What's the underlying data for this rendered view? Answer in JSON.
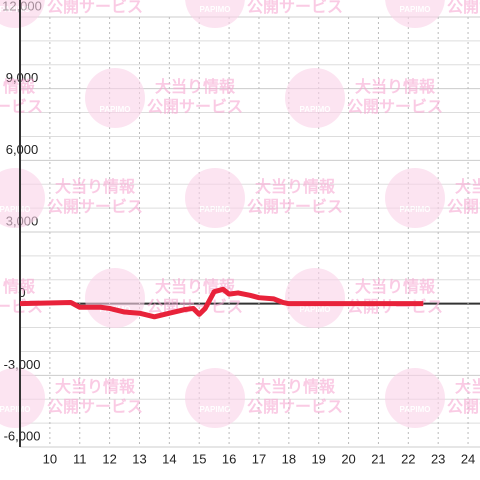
{
  "chart_data": {
    "type": "line",
    "x": [
      9,
      10.7,
      11,
      11.7,
      12,
      12.5,
      13,
      13.5,
      14,
      14.5,
      14.8,
      15,
      15.2,
      15.5,
      15.8,
      16,
      16.3,
      16.7,
      17,
      17.5,
      17.8,
      18,
      22.5
    ],
    "series": [
      {
        "color": "#e8223a",
        "values": [
          0,
          50,
          -150,
          -150,
          -200,
          -350,
          -400,
          -550,
          -400,
          -250,
          -200,
          -450,
          -200,
          500,
          600,
          400,
          450,
          350,
          250,
          200,
          50,
          0,
          0
        ]
      }
    ],
    "xlim": [
      9,
      24.4
    ],
    "xticks": [
      10,
      11,
      12,
      13,
      14,
      15,
      16,
      17,
      18,
      19,
      20,
      21,
      22,
      23,
      24
    ],
    "ylim": [
      -6000,
      12000
    ],
    "yticks": [
      {
        "value": -6000,
        "label": "-6,000"
      },
      {
        "value": -3000,
        "label": "-3,000"
      },
      0,
      {
        "value": 3000,
        "label": "3,000"
      },
      {
        "value": 6000,
        "label": "6,000"
      },
      {
        "value": 9000,
        "label": "9,000"
      },
      {
        "value": 12000,
        "label": "12,000"
      }
    ],
    "y_minor_ticks": [
      -5000,
      -4000,
      -2000,
      -1000,
      1000,
      2000,
      4000,
      5000,
      7000,
      8000,
      10000,
      11000
    ],
    "grid": true
  },
  "watermark": {
    "brand": "PAPIMO",
    "line1": "大当り情報",
    "line2": "公開サービス"
  }
}
